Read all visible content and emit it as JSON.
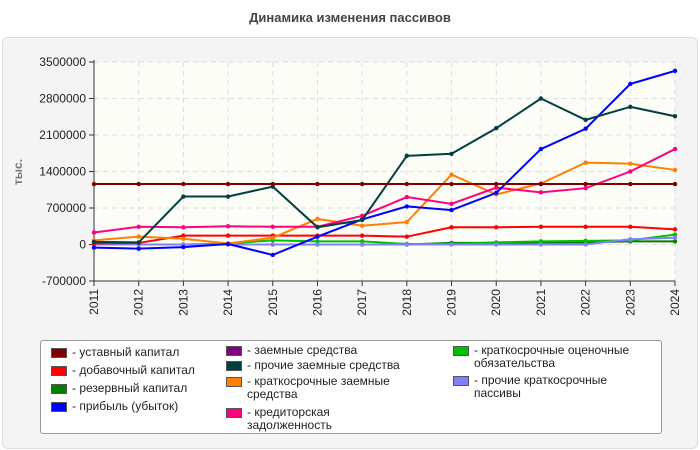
{
  "chart_data": {
    "type": "line",
    "title": "Динамика изменения пассивов",
    "ylabel": "тыс.",
    "xlabel": "",
    "categories": [
      "2011",
      "2012",
      "2013",
      "2014",
      "2015",
      "2016",
      "2017",
      "2018",
      "2019",
      "2020",
      "2021",
      "2022",
      "2023",
      "2024"
    ],
    "ylim": [
      -700000,
      3500000
    ],
    "yticks": [
      "-700000",
      "0",
      "700000",
      "1400000",
      "2100000",
      "2800000",
      "3500000"
    ],
    "grid": true,
    "legend": "bottom",
    "series": [
      {
        "name": "- уставный капитал",
        "color": "#800000",
        "values": [
          1160000,
          1160000,
          1160000,
          1160000,
          1160000,
          1160000,
          1160000,
          1160000,
          1160000,
          1160000,
          1160000,
          1160000,
          1160000,
          1160000
        ]
      },
      {
        "name": "- добавочный капитал",
        "color": "#ff0000",
        "values": [
          20000,
          30000,
          170000,
          170000,
          170000,
          170000,
          170000,
          150000,
          330000,
          330000,
          340000,
          340000,
          340000,
          290000
        ]
      },
      {
        "name": "- резервный капитал",
        "color": "#008000",
        "values": [
          0,
          0,
          0,
          0,
          0,
          0,
          0,
          0,
          30000,
          30000,
          40000,
          40000,
          60000,
          60000
        ]
      },
      {
        "name": "- прибыль (убыток)",
        "color": "#0000ff",
        "values": [
          -60000,
          -80000,
          -50000,
          10000,
          -200000,
          150000,
          480000,
          730000,
          660000,
          990000,
          1830000,
          2220000,
          3080000,
          3330000
        ]
      },
      {
        "name": "- заемные средства",
        "color": "#800080",
        "values": [
          0,
          0,
          0,
          0,
          0,
          0,
          0,
          0,
          0,
          0,
          0,
          0,
          0,
          0
        ]
      },
      {
        "name": "- прочие заемные средства",
        "color": "#004040",
        "values": [
          50000,
          40000,
          920000,
          920000,
          1110000,
          330000,
          470000,
          1700000,
          1740000,
          2230000,
          2800000,
          2390000,
          2640000,
          2460000
        ]
      },
      {
        "name": "- краткосрочные заемные средства",
        "color": "#ff8000",
        "values": [
          80000,
          150000,
          110000,
          20000,
          130000,
          490000,
          360000,
          430000,
          1340000,
          960000,
          1170000,
          1570000,
          1550000,
          1430000
        ]
      },
      {
        "name": "- кредиторская задолженность",
        "color": "#ff0080",
        "values": [
          230000,
          340000,
          330000,
          350000,
          340000,
          340000,
          550000,
          910000,
          780000,
          1090000,
          1000000,
          1080000,
          1400000,
          1830000
        ]
      },
      {
        "name": "- краткосрочные оценочные обязательства",
        "color": "#00c000",
        "values": [
          0,
          0,
          0,
          20000,
          80000,
          60000,
          60000,
          10000,
          10000,
          40000,
          60000,
          70000,
          80000,
          190000
        ]
      },
      {
        "name": "- прочие краткосрочные пассивы",
        "color": "#8080ff",
        "values": [
          0,
          0,
          0,
          0,
          0,
          0,
          0,
          0,
          0,
          0,
          0,
          0,
          100000,
          130000
        ]
      }
    ]
  }
}
